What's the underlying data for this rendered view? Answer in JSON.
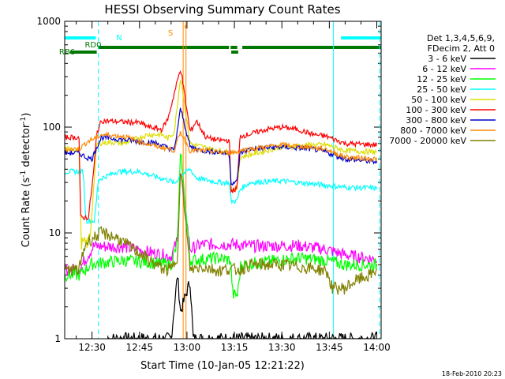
{
  "chart_data": {
    "type": "line",
    "title": "HESSI Observing Summary Count Rates",
    "xlabel": "Start Time (10-Jan-05 12:21:22)",
    "ylabel_parts": [
      "Count Rate (s",
      "-1",
      " detector",
      "-1",
      ")"
    ],
    "yscale": "log",
    "ylim": [
      1,
      1000
    ],
    "xlim": [
      "12:21:22",
      "14:01:22"
    ],
    "x_ticks": [
      {
        "t": 30,
        "label": "12:30"
      },
      {
        "t": 45,
        "label": "12:45"
      },
      {
        "t": 60,
        "label": "13:00"
      },
      {
        "t": 75,
        "label": "13:15"
      },
      {
        "t": 90,
        "label": "13:30"
      },
      {
        "t": 105,
        "label": "13:45"
      },
      {
        "t": 120,
        "label": "14:00"
      }
    ],
    "y_ticks": [
      {
        "v": 1,
        "label": "1"
      },
      {
        "v": 10,
        "label": "10"
      },
      {
        "v": 100,
        "label": "100"
      },
      {
        "v": 1000,
        "label": "1000"
      }
    ],
    "legend_header": [
      "Det 1,3,4,5,6,9,",
      "FDecim 2, Att 0"
    ],
    "footer_date": "18-Feb-2010 20:23",
    "bars": [
      {
        "label": "N",
        "color": "#00ffff",
        "segments": [
          [
            21.4,
            31.2
          ],
          [
            108.7,
            121.4
          ]
        ]
      },
      {
        "label": "RD0",
        "color": "#007700",
        "segments": [
          [
            32.1,
            73.3
          ],
          [
            73.8,
            75.9
          ],
          [
            77.5,
            121.4
          ]
        ]
      },
      {
        "label": "RB6",
        "color": "#007700",
        "segments": [
          [
            23.0,
            31.5
          ],
          [
            74.0,
            76.2
          ]
        ]
      },
      {
        "label": "S",
        "color": "#ff8800",
        "segments": [
          [
            59.3,
            59.8
          ]
        ]
      }
    ],
    "vlines": [
      {
        "t": 32.0,
        "color": "#00ffff",
        "style": "dashed"
      },
      {
        "t": 106.3,
        "color": "#00ffff",
        "style": "solid"
      },
      {
        "t": 120.9,
        "color": "#00ffff",
        "style": "dashed"
      },
      {
        "t": 58.8,
        "color": "#ff8800",
        "style": "solid"
      },
      {
        "t": 59.7,
        "color": "#ff8800",
        "style": "solid"
      }
    ],
    "series": [
      {
        "name": "3 - 6 keV",
        "color": "#000000",
        "points": [
          [
            35,
            1
          ],
          [
            41,
            1
          ],
          [
            48,
            1
          ],
          [
            55,
            1
          ],
          [
            56,
            2
          ],
          [
            57,
            4
          ],
          [
            58,
            1.8
          ],
          [
            61,
            3.5
          ],
          [
            62,
            1
          ],
          [
            70,
            1
          ],
          [
            80,
            1
          ],
          [
            95,
            1
          ],
          [
            99,
            1
          ],
          [
            110,
            1
          ],
          [
            120,
            1
          ]
        ]
      },
      {
        "name": "6 - 12 keV",
        "color": "#ff00ff",
        "points": [
          [
            21.4,
            4.5
          ],
          [
            25.9,
            4.5
          ],
          [
            30.5,
            7.5
          ],
          [
            40,
            7.4
          ],
          [
            50,
            6.4
          ],
          [
            55,
            6
          ],
          [
            57,
            8.5
          ],
          [
            58,
            40
          ],
          [
            61,
            7
          ],
          [
            65,
            7.8
          ],
          [
            70,
            7.8
          ],
          [
            75,
            7.8
          ],
          [
            80,
            7.5
          ],
          [
            95,
            7.6
          ],
          [
            104,
            7
          ],
          [
            110,
            6.2
          ],
          [
            113,
            6
          ],
          [
            120,
            5.6
          ]
        ]
      },
      {
        "name": "12 - 25 keV",
        "color": "#00ff00",
        "points": [
          [
            21.4,
            4
          ],
          [
            25.9,
            4
          ],
          [
            30,
            5.1
          ],
          [
            40,
            5.5
          ],
          [
            50,
            5.2
          ],
          [
            55,
            5
          ],
          [
            57,
            8
          ],
          [
            58,
            60
          ],
          [
            61,
            5.5
          ],
          [
            70,
            5.8
          ],
          [
            73.8,
            5.5
          ],
          [
            74.5,
            2.6
          ],
          [
            76,
            2.6
          ],
          [
            77,
            5
          ],
          [
            95,
            5.8
          ],
          [
            104,
            5.5
          ],
          [
            110,
            5
          ],
          [
            120,
            5
          ]
        ]
      },
      {
        "name": "25 - 50 keV",
        "color": "#00ffff",
        "points": [
          [
            21.4,
            38
          ],
          [
            27.2,
            38
          ],
          [
            28.1,
            13
          ],
          [
            30.8,
            13
          ],
          [
            32,
            32
          ],
          [
            38,
            38
          ],
          [
            45,
            38
          ],
          [
            50,
            34
          ],
          [
            55,
            31
          ],
          [
            56,
            29
          ],
          [
            58,
            35
          ],
          [
            61,
            40
          ],
          [
            63,
            33
          ],
          [
            70,
            30
          ],
          [
            73.4,
            30
          ],
          [
            73.9,
            20
          ],
          [
            75.8,
            20
          ],
          [
            76.8,
            26
          ],
          [
            80,
            30
          ],
          [
            90,
            31
          ],
          [
            100,
            29
          ],
          [
            110,
            27
          ],
          [
            120,
            26.5
          ]
        ]
      },
      {
        "name": "50 - 100 keV",
        "color": "#dddd00",
        "points": [
          [
            21.4,
            62
          ],
          [
            25.9,
            62
          ],
          [
            26.6,
            8
          ],
          [
            28.6,
            8
          ],
          [
            29.5,
            10
          ],
          [
            31.5,
            70
          ],
          [
            36,
            72
          ],
          [
            40,
            70
          ],
          [
            45,
            80
          ],
          [
            48,
            85
          ],
          [
            52,
            85
          ],
          [
            54,
            78
          ],
          [
            56,
            90
          ],
          [
            58,
            300
          ],
          [
            61,
            70
          ],
          [
            65,
            65
          ],
          [
            70,
            60
          ],
          [
            73.4,
            58
          ],
          [
            73.9,
            26
          ],
          [
            75.8,
            26
          ],
          [
            76.8,
            52
          ],
          [
            80,
            55
          ],
          [
            90,
            65
          ],
          [
            100,
            68
          ],
          [
            104,
            68
          ],
          [
            110,
            60
          ],
          [
            120,
            58
          ]
        ]
      },
      {
        "name": "100 - 300 keV",
        "color": "#ff0000",
        "points": [
          [
            21.4,
            80
          ],
          [
            25.9,
            80
          ],
          [
            26.4,
            14
          ],
          [
            28.9,
            14
          ],
          [
            30.5,
            38
          ],
          [
            31.5,
            88
          ],
          [
            33,
            115
          ],
          [
            45,
            110
          ],
          [
            48,
            100
          ],
          [
            52,
            95
          ],
          [
            54,
            120
          ],
          [
            58,
            360
          ],
          [
            61,
            90
          ],
          [
            63,
            115
          ],
          [
            66,
            80
          ],
          [
            70,
            75
          ],
          [
            73.4,
            75
          ],
          [
            73.9,
            25
          ],
          [
            75.8,
            26
          ],
          [
            76.8,
            82
          ],
          [
            80,
            86
          ],
          [
            85,
            95
          ],
          [
            90,
            100
          ],
          [
            95,
            95
          ],
          [
            100,
            85
          ],
          [
            104,
            82
          ],
          [
            110,
            70
          ],
          [
            120,
            68
          ]
        ]
      },
      {
        "name": "300 - 800 keV",
        "color": "#0000cc",
        "points": [
          [
            21.4,
            57
          ],
          [
            25.9,
            57
          ],
          [
            28,
            52
          ],
          [
            30,
            50
          ],
          [
            31.5,
            65
          ],
          [
            33,
            80
          ],
          [
            40,
            76
          ],
          [
            45,
            73
          ],
          [
            50,
            71
          ],
          [
            55,
            62
          ],
          [
            56,
            60
          ],
          [
            58,
            150
          ],
          [
            61,
            65
          ],
          [
            65,
            60
          ],
          [
            70,
            58
          ],
          [
            73.4,
            56
          ],
          [
            73.9,
            30
          ],
          [
            75.8,
            30
          ],
          [
            76.8,
            57
          ],
          [
            80,
            62
          ],
          [
            90,
            65
          ],
          [
            100,
            62
          ],
          [
            104,
            58
          ],
          [
            110,
            50
          ],
          [
            120,
            47
          ]
        ]
      },
      {
        "name": "800 - 7000 keV",
        "color": "#ff8800",
        "points": [
          [
            21.4,
            62
          ],
          [
            25.9,
            62
          ],
          [
            28.6,
            73
          ],
          [
            31.5,
            80
          ],
          [
            33,
            85
          ],
          [
            40,
            82
          ],
          [
            45,
            73
          ],
          [
            50,
            66
          ],
          [
            55,
            62
          ],
          [
            56,
            60
          ],
          [
            58,
            90
          ],
          [
            61,
            60
          ],
          [
            65,
            60
          ],
          [
            70,
            58
          ],
          [
            73.4,
            57
          ],
          [
            73.9,
            58
          ],
          [
            75.8,
            58
          ],
          [
            76.8,
            60
          ],
          [
            80,
            62
          ],
          [
            90,
            68
          ],
          [
            100,
            64
          ],
          [
            104,
            62
          ],
          [
            110,
            52
          ],
          [
            120,
            50
          ]
        ]
      },
      {
        "name": "7000 - 20000 keV",
        "color": "#808000",
        "points": [
          [
            21.4,
            4.5
          ],
          [
            25.9,
            4.5
          ],
          [
            28,
            8
          ],
          [
            30.5,
            9
          ],
          [
            33,
            10
          ],
          [
            38,
            9
          ],
          [
            40,
            8
          ],
          [
            45,
            6.5
          ],
          [
            50,
            5
          ],
          [
            53,
            4.5
          ],
          [
            55,
            4.5
          ],
          [
            57,
            6
          ],
          [
            58,
            40
          ],
          [
            61,
            4.5
          ],
          [
            65,
            4.8
          ],
          [
            70,
            4.4
          ],
          [
            73.4,
            4.6
          ],
          [
            73.9,
            4.5
          ],
          [
            75.8,
            4.5
          ],
          [
            76.8,
            4.5
          ],
          [
            80,
            5
          ],
          [
            90,
            5
          ],
          [
            100,
            4.6
          ],
          [
            104,
            4.4
          ],
          [
            106,
            3
          ],
          [
            110,
            3
          ],
          [
            113,
            3.5
          ],
          [
            118,
            4
          ],
          [
            120,
            4.5
          ]
        ]
      }
    ]
  }
}
